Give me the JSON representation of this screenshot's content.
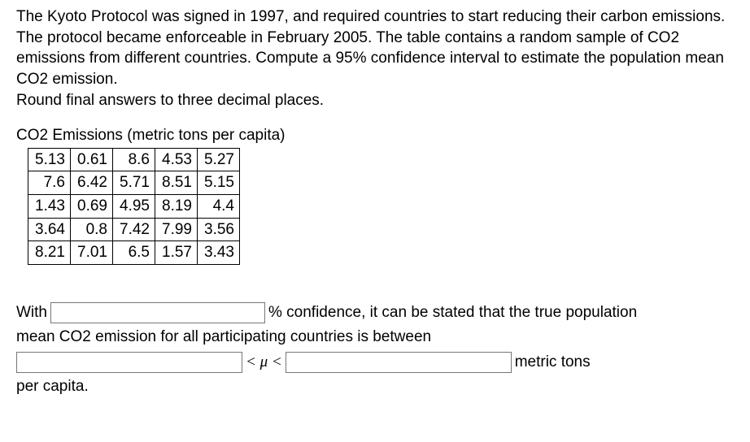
{
  "prompt": {
    "p1": "The Kyoto Protocol was signed in 1997, and required countries to start reducing their carbon emissions. The protocol became enforceable in February 2005. The table contains a random sample of CO2 emissions from different countries. Compute a 95% confidence interval to estimate the population mean CO2 emission.",
    "p2": "Round final answers to three decimal places."
  },
  "table": {
    "title": "CO2 Emissions (metric tons per capita)",
    "rows": [
      [
        "5.13",
        "0.61",
        "8.6",
        "4.53",
        "5.27"
      ],
      [
        "7.6",
        "6.42",
        "5.71",
        "8.51",
        "5.15"
      ],
      [
        "1.43",
        "0.69",
        "4.95",
        "8.19",
        "4.4"
      ],
      [
        "3.64",
        "0.8",
        "7.42",
        "7.99",
        "3.56"
      ],
      [
        "8.21",
        "7.01",
        "6.5",
        "1.57",
        "3.43"
      ]
    ]
  },
  "answer": {
    "t1": "With ",
    "t2": " % confidence, it can be stated that the true population",
    "t3": "mean CO2 emission for all participating countries is between",
    "mu": " < μ < ",
    "t4": " metric tons",
    "t5": "per capita."
  },
  "inputs": {
    "confidence": "",
    "lower": "",
    "upper": ""
  }
}
